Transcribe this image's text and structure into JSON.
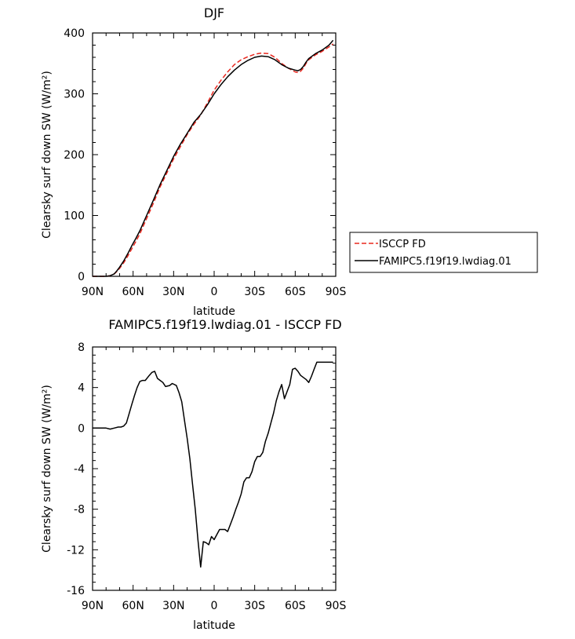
{
  "chart_data": [
    {
      "type": "line",
      "title": "DJF",
      "xlabel": "latitude",
      "ylabel": "Clearsky surf down SW (W/m²)",
      "xlim": [
        -90,
        90
      ],
      "ylim": [
        0,
        400
      ],
      "xticks": [
        -90,
        -60,
        -30,
        0,
        30,
        60,
        90
      ],
      "xtick_labels": [
        "90N",
        "60N",
        "30N",
        "0",
        "30S",
        "60S",
        "90S"
      ],
      "yticks": [
        0,
        100,
        200,
        300,
        400
      ],
      "ytick_labels": [
        "0",
        "100",
        "200",
        "300",
        "400"
      ],
      "legend_position": "right",
      "grid": false,
      "series": [
        {
          "name": "ISCCP FD",
          "color": "#e8281f",
          "dash": "dashed",
          "x": [
            -90,
            -85,
            -80,
            -77,
            -74,
            -72,
            -70,
            -67,
            -64,
            -61,
            -58,
            -55,
            -50,
            -45,
            -40,
            -35,
            -30,
            -25,
            -20,
            -15,
            -10,
            -5,
            0,
            5,
            10,
            15,
            20,
            25,
            30,
            35,
            40,
            45,
            50,
            55,
            60,
            62,
            64,
            66,
            68,
            70,
            75,
            80,
            85,
            88
          ],
          "y": [
            0,
            0,
            0,
            1,
            4,
            8,
            13,
            22,
            33,
            45,
            57,
            70,
            95,
            120,
            147,
            170,
            193,
            213,
            233,
            250,
            265,
            285,
            306,
            322,
            336,
            348,
            356,
            361,
            365,
            367,
            366,
            360,
            350,
            342,
            336,
            335,
            337,
            342,
            350,
            356,
            364,
            370,
            377,
            382
          ]
        },
        {
          "name": "FAMIPC5.f19f19.lwdiag.01",
          "color": "#000000",
          "dash": "solid",
          "x": [
            -90,
            -85,
            -80,
            -77,
            -74,
            -72,
            -70,
            -67,
            -64,
            -61,
            -58,
            -55,
            -50,
            -45,
            -40,
            -35,
            -30,
            -25,
            -20,
            -15,
            -10,
            -5,
            0,
            5,
            10,
            15,
            20,
            25,
            30,
            35,
            40,
            45,
            50,
            55,
            60,
            62,
            64,
            66,
            68,
            70,
            75,
            80,
            85,
            88
          ],
          "y": [
            0,
            0,
            0,
            1,
            4,
            9,
            15,
            25,
            37,
            50,
            62,
            75,
            100,
            125,
            151,
            174,
            197,
            217,
            235,
            253,
            266,
            282,
            300,
            315,
            328,
            339,
            348,
            355,
            360,
            362,
            361,
            356,
            348,
            342,
            339,
            338,
            340,
            345,
            352,
            358,
            366,
            372,
            380,
            388
          ]
        }
      ]
    },
    {
      "type": "line",
      "title": "FAMIPC5.f19f19.lwdiag.01 - ISCCP FD",
      "xlabel": "latitude",
      "ylabel": "Clearsky surf down SW (W/m²)",
      "xlim": [
        -90,
        90
      ],
      "ylim": [
        -16,
        8
      ],
      "xticks": [
        -90,
        -60,
        -30,
        0,
        30,
        60,
        90
      ],
      "xtick_labels": [
        "90N",
        "60N",
        "30N",
        "0",
        "30S",
        "60S",
        "90S"
      ],
      "yticks": [
        -16,
        -12,
        -8,
        -4,
        0,
        4,
        8
      ],
      "ytick_labels": [
        "-16",
        "-12",
        "-8",
        "-4",
        "0",
        "4",
        "8"
      ],
      "grid": false,
      "series": [
        {
          "color": "#000000",
          "dash": "solid",
          "x": [
            -90,
            -85,
            -80,
            -77,
            -74,
            -71,
            -69,
            -67,
            -65,
            -63,
            -61,
            -59,
            -57,
            -55,
            -53,
            -51,
            -48,
            -46,
            -44,
            -42,
            -40,
            -38,
            -36,
            -33,
            -31,
            -28,
            -26,
            -24,
            -22,
            -20,
            -18,
            -16,
            -14,
            -12,
            -10,
            -8,
            -6,
            -4,
            -2,
            0,
            2,
            4,
            6,
            8,
            10,
            12,
            14,
            16,
            18,
            20,
            22,
            24,
            26,
            28,
            30,
            32,
            34,
            36,
            38,
            40,
            42,
            44,
            46,
            48,
            50,
            52,
            54,
            56,
            58,
            60,
            62,
            64,
            66,
            68,
            70,
            72,
            74,
            76,
            78,
            80,
            82,
            84,
            86,
            88
          ],
          "y": [
            0,
            0,
            0,
            -0.1,
            0,
            0.1,
            0.1,
            0.2,
            0.5,
            1.4,
            2.3,
            3.2,
            4.0,
            4.6,
            4.7,
            4.7,
            5.2,
            5.5,
            5.6,
            4.9,
            4.7,
            4.5,
            4.1,
            4.2,
            4.4,
            4.2,
            3.5,
            2.6,
            0.8,
            -1.0,
            -3.0,
            -5.5,
            -8.0,
            -11.0,
            -13.7,
            -11.2,
            -11.3,
            -11.5,
            -10.7,
            -11.0,
            -10.5,
            -10.0,
            -10.0,
            -10.0,
            -10.2,
            -9.5,
            -8.8,
            -8.0,
            -7.3,
            -6.5,
            -5.3,
            -4.9,
            -4.9,
            -4.3,
            -3.3,
            -2.8,
            -2.8,
            -2.4,
            -1.3,
            -0.5,
            0.5,
            1.5,
            2.7,
            3.6,
            4.3,
            2.9,
            3.6,
            4.3,
            5.8,
            5.9,
            5.6,
            5.2,
            5.0,
            4.8,
            4.5,
            5.1,
            5.8,
            6.5,
            6.5,
            6.5,
            6.5,
            6.5,
            6.5,
            6.5
          ]
        }
      ]
    }
  ]
}
